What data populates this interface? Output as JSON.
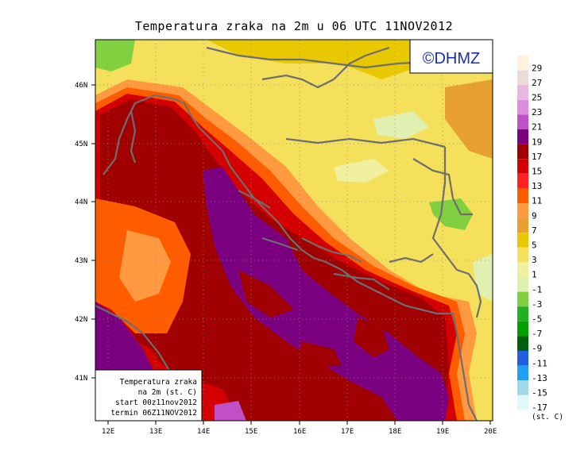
{
  "title": "Temperatura zraka na 2m u 06 UTC 11NOV2012",
  "logo_text": "©DHMZ",
  "info_box": {
    "line1": "Temperatura zraka",
    "line2": "na 2m (st. C)",
    "line3": "start 00z11nov2012",
    "line4": "termin 06Z11NOV2012"
  },
  "legend": {
    "unit": "(st. C)",
    "labels": [
      "29",
      "27",
      "25",
      "23",
      "21",
      "19",
      "17",
      "15",
      "13",
      "11",
      "9",
      "7",
      "5",
      "3",
      "1",
      "-1",
      "-3",
      "-5",
      "-7",
      "-9",
      "-11",
      "-13",
      "-15",
      "-17"
    ],
    "colors": [
      "#fff0e0",
      "#ecdcd8",
      "#e8b8e0",
      "#dc8cdc",
      "#c050c8",
      "#7a0080",
      "#a00000",
      "#d40000",
      "#ff2020",
      "#ff5c00",
      "#ff9a40",
      "#e8a030",
      "#e8c800",
      "#f4e05a",
      "#f0f0a0",
      "#e0f0b0",
      "#80d040",
      "#20b020",
      "#00a000",
      "#006010",
      "#2060e0",
      "#20a0f0",
      "#a0d8e8",
      "#e0f8f8"
    ]
  },
  "axes": {
    "lat_labels": [
      "46N",
      "45N",
      "44N",
      "43N",
      "42N",
      "41N"
    ],
    "lon_labels": [
      "12E",
      "13E",
      "14E",
      "15E",
      "16E",
      "17E",
      "18E",
      "19E",
      "20E"
    ]
  }
}
